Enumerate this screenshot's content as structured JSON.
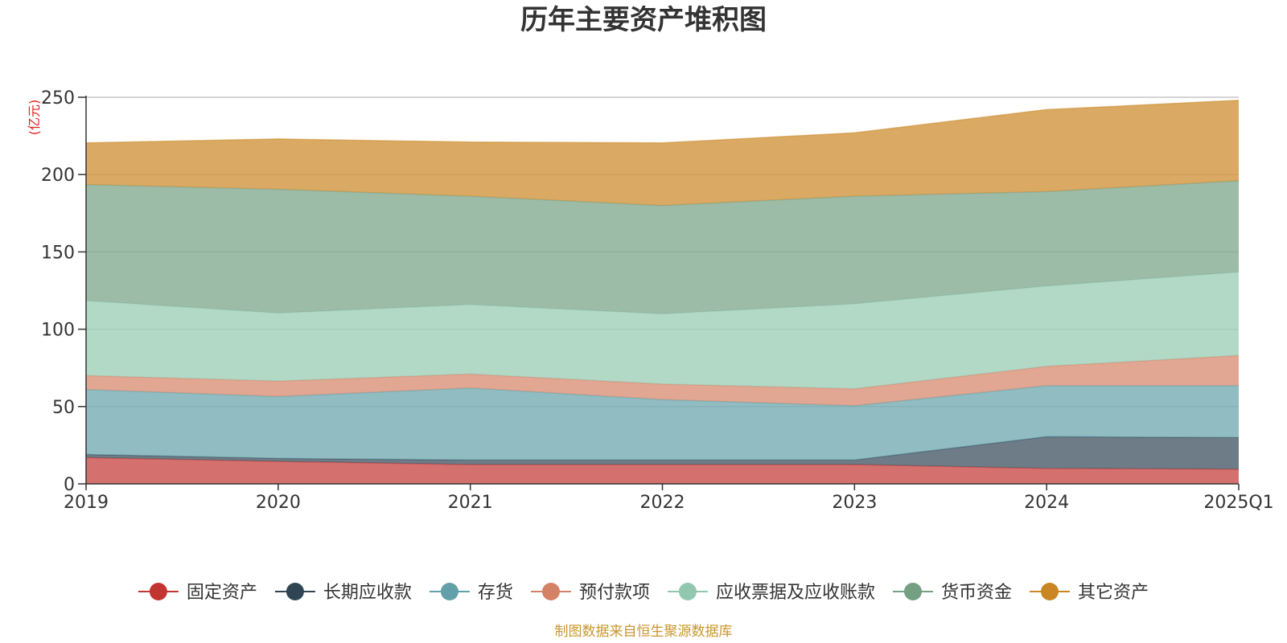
{
  "chart_data": {
    "type": "area",
    "stacked": true,
    "title": "历年主要资产堆积图",
    "unit_label": "(亿元)",
    "categories": [
      "2019",
      "2020",
      "2021",
      "2022",
      "2023",
      "2024",
      "2025Q1"
    ],
    "ylim": [
      0,
      250
    ],
    "yticks": [
      0,
      50,
      100,
      150,
      200,
      250
    ],
    "grid": true,
    "legend_position": "bottom",
    "series": [
      {
        "name": "固定资产",
        "color": "#c23531",
        "values": [
          17,
          14.5,
          12.5,
          12.5,
          12.5,
          10,
          9.5
        ]
      },
      {
        "name": "长期应收款",
        "color": "#2f4554",
        "values": [
          2,
          2,
          3,
          3,
          3,
          20.5,
          20.5
        ]
      },
      {
        "name": "存货",
        "color": "#61a0a8",
        "values": [
          42,
          40,
          46.5,
          39,
          35,
          33,
          33.5
        ]
      },
      {
        "name": "预付款项",
        "color": "#d48265",
        "values": [
          9,
          10,
          9,
          10,
          11,
          12.5,
          19.5
        ]
      },
      {
        "name": "应收票据及应收账款",
        "color": "#91c7ae",
        "values": [
          48.5,
          44,
          45,
          45.5,
          55,
          52,
          54
        ]
      },
      {
        "name": "货币资金",
        "color": "#749f83",
        "values": [
          75,
          80,
          70,
          70,
          69.5,
          61,
          59
        ]
      },
      {
        "name": "其它资产",
        "color": "#ca8622",
        "values": [
          27,
          32.5,
          35,
          40.5,
          41,
          53,
          52
        ]
      }
    ],
    "source_note": "制图数据来自恒生聚源数据库"
  }
}
